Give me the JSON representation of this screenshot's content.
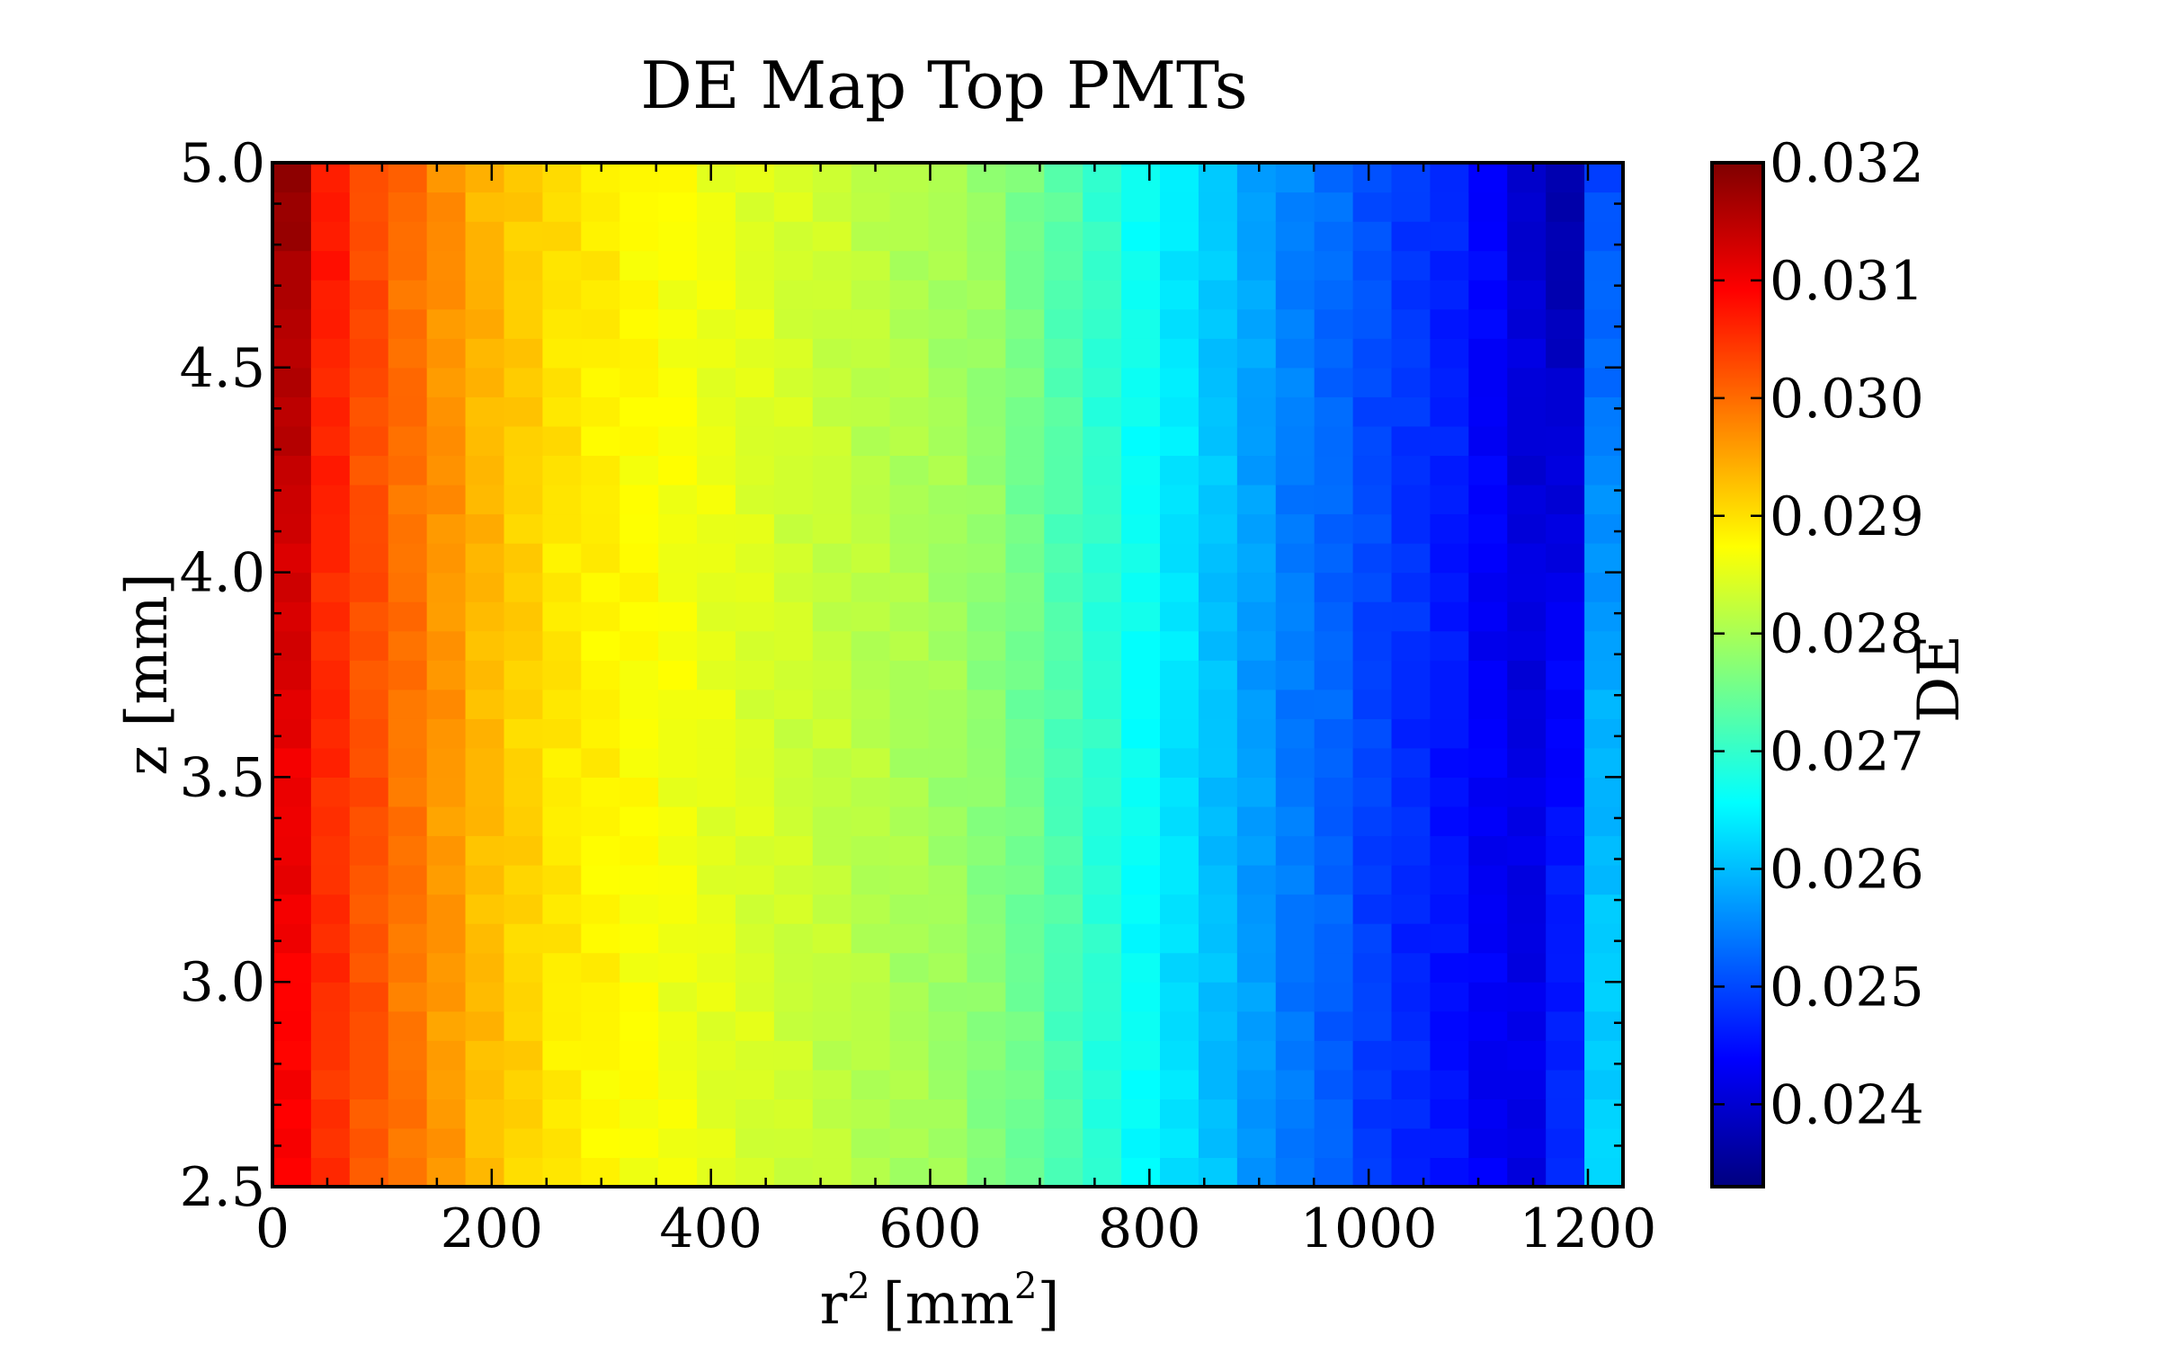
{
  "chart_data": {
    "type": "heatmap",
    "title": "DE Map Top PMTs",
    "xlabel": "r",
    "xlabel_superscript": "2",
    "xlabel_unit": "[mm",
    "xlabel_unit_superscript": "2",
    "xlabel_close": "]",
    "ylabel": "z [mm]",
    "colorbar_label": "DE",
    "xlim": [
      0,
      1232
    ],
    "ylim": [
      2.5,
      5.0
    ],
    "x_ticks": [
      0,
      200,
      400,
      600,
      800,
      1000,
      1200
    ],
    "x_tick_labels": [
      "0",
      "200",
      "400",
      "600",
      "800",
      "1000",
      "1200"
    ],
    "y_ticks": [
      2.5,
      3.0,
      3.5,
      4.0,
      4.5,
      5.0
    ],
    "y_tick_labels": [
      "2.5",
      "3.0",
      "3.5",
      "4.0",
      "4.5",
      "5.0"
    ],
    "colorbar_range": [
      0.0233,
      0.032
    ],
    "colorbar_ticks": [
      0.024,
      0.025,
      0.026,
      0.027,
      0.028,
      0.029,
      0.03,
      0.031,
      0.032
    ],
    "colorbar_tick_labels": [
      "0.024",
      "0.025",
      "0.026",
      "0.027",
      "0.028",
      "0.029",
      "0.030",
      "0.031",
      "0.032"
    ],
    "colormap": "jet",
    "grid": false,
    "x_bin_edges_start": 0,
    "x_bin_width": 35.2,
    "x_bins": 35,
    "y_bins": 35,
    "column_values_bottom": [
      0.0309,
      0.0305,
      0.0302,
      0.0299,
      0.0296,
      0.0293,
      0.0291,
      0.0289,
      0.0288,
      0.0287,
      0.0286,
      0.0285,
      0.0284,
      0.0283,
      0.0282,
      0.0281,
      0.028,
      0.0279,
      0.0277,
      0.0275,
      0.0272,
      0.0269,
      0.0266,
      0.0263,
      0.026,
      0.0257,
      0.0254,
      0.0252,
      0.0249,
      0.0247,
      0.0245,
      0.0243,
      0.0242,
      0.0247,
      0.0262
    ],
    "column_values_top": [
      0.0318,
      0.0307,
      0.0303,
      0.03,
      0.0297,
      0.0294,
      0.0292,
      0.029,
      0.0289,
      0.0288,
      0.0287,
      0.0286,
      0.0285,
      0.0284,
      0.0283,
      0.0282,
      0.0281,
      0.028,
      0.0279,
      0.0276,
      0.0273,
      0.027,
      0.0267,
      0.0264,
      0.0261,
      0.0258,
      0.0255,
      0.0253,
      0.0251,
      0.0249,
      0.0247,
      0.0244,
      0.024,
      0.0236,
      0.025
    ]
  }
}
